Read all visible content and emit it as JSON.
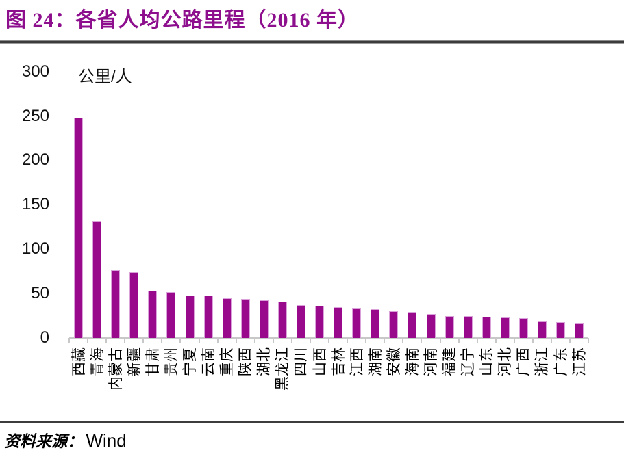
{
  "title": "图 24：各省人均公路里程（2016 年）",
  "footer": {
    "source_label": "资料来源：",
    "source_value": "Wind"
  },
  "colors": {
    "title_purple": "#8d0f8d",
    "bar_fill": "#99098c",
    "bar_border": "#d9a0d9",
    "axis_gray": "#c8c8c8",
    "rule_dark": "#3c3c3c"
  },
  "chart_data": {
    "type": "bar",
    "title": "图 24：各省人均公路里程（2016 年）",
    "unit_label": "公里/人",
    "xlabel": "",
    "ylabel": "公里/人",
    "ylim": [
      0,
      300
    ],
    "yticks": [
      0,
      50,
      100,
      150,
      200,
      250,
      300
    ],
    "grid": false,
    "legend": "none",
    "categories": [
      "西藏",
      "青海",
      "内蒙古",
      "新疆",
      "甘肃",
      "贵州",
      "宁夏",
      "云南",
      "重庆",
      "陕西",
      "湖北",
      "黑龙江",
      "四川",
      "山西",
      "吉林",
      "江西",
      "湖南",
      "安徽",
      "海南",
      "河南",
      "福建",
      "辽宁",
      "山东",
      "河北",
      "广西",
      "浙江",
      "广东",
      "江苏"
    ],
    "values": [
      248,
      132,
      76,
      74,
      53,
      52,
      48,
      48,
      45,
      44,
      42,
      41,
      37,
      36,
      35,
      34,
      32,
      30,
      29,
      27,
      25,
      25,
      24,
      23,
      22,
      19,
      18,
      17
    ]
  }
}
